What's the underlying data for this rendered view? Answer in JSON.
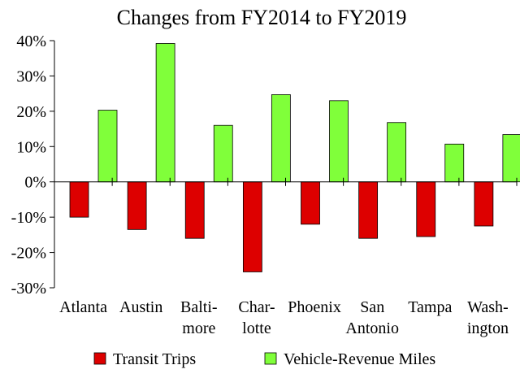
{
  "chart_data": {
    "type": "bar",
    "title": "Changes from FY2014 to FY2019",
    "xlabel": "",
    "ylabel": "",
    "ylim": [
      -30,
      40
    ],
    "yticks": [
      -30,
      -20,
      -10,
      0,
      10,
      20,
      30,
      40
    ],
    "ytick_labels": [
      "-30%",
      "-20%",
      "-10%",
      "0%",
      "10%",
      "20%",
      "30%",
      "40%"
    ],
    "categories": [
      "Atlanta",
      "Austin",
      "Balti-\nmore",
      "Char-\nlotte",
      "Phoenix",
      "San\nAntonio",
      "Tampa",
      "Wash-\nington"
    ],
    "series": [
      {
        "name": "Transit Trips",
        "color": "#dd0000",
        "values": [
          -10,
          -13.5,
          -16,
          -25.5,
          -12,
          -16,
          -15.5,
          -12.5
        ]
      },
      {
        "name": "Vehicle-Revenue Miles",
        "color": "#80ff3a",
        "values": [
          20.3,
          39.2,
          16,
          24.7,
          23,
          16.8,
          10.7,
          13.4
        ]
      }
    ],
    "grid": false,
    "legend_position": "bottom"
  }
}
